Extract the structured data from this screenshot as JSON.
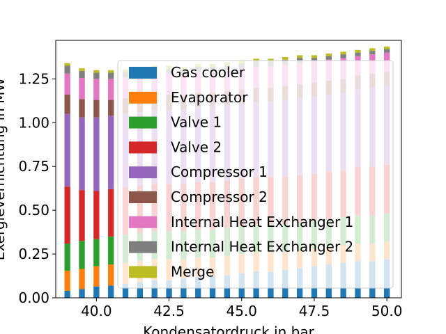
{
  "chart_data": {
    "type": "bar",
    "stacked": true,
    "xlabel": "Kondensatordruck in bar",
    "ylabel": "Exergievernichtung in MW",
    "xlim": [
      38.6,
      50.5
    ],
    "ylim": [
      0.0,
      1.47
    ],
    "xticks": [
      "40.0",
      "42.5",
      "45.0",
      "47.5",
      "50.0"
    ],
    "yticks": [
      "0.00",
      "0.25",
      "0.50",
      "0.75",
      "1.00",
      "1.25"
    ],
    "grid": false,
    "legend_position": "center-right",
    "bar_width": 0.2,
    "x": [
      39.0,
      39.5,
      40.0,
      40.5,
      41.0,
      41.5,
      42.0,
      42.5,
      43.0,
      43.5,
      44.0,
      44.5,
      45.0,
      45.5,
      46.0,
      46.5,
      47.0,
      47.5,
      48.0,
      48.5,
      49.0,
      49.5,
      50.0
    ],
    "series": [
      {
        "name": "Gas cooler",
        "color": "#1f77b4",
        "values": [
          0.04,
          0.05,
          0.065,
          0.07,
          0.08,
          0.09,
          0.1,
          0.1,
          0.11,
          0.12,
          0.12,
          0.13,
          0.14,
          0.15,
          0.15,
          0.16,
          0.17,
          0.18,
          0.19,
          0.2,
          0.21,
          0.21,
          0.22
        ]
      },
      {
        "name": "Evaporator",
        "color": "#ff7f0e",
        "values": [
          0.115,
          0.115,
          0.115,
          0.12,
          0.12,
          0.12,
          0.12,
          0.12,
          0.11,
          0.11,
          0.11,
          0.11,
          0.11,
          0.11,
          0.11,
          0.1,
          0.1,
          0.1,
          0.1,
          0.1,
          0.1,
          0.1,
          0.1
        ]
      },
      {
        "name": "Valve 1",
        "color": "#2ca02c",
        "values": [
          0.155,
          0.16,
          0.155,
          0.16,
          0.16,
          0.16,
          0.16,
          0.16,
          0.16,
          0.16,
          0.16,
          0.16,
          0.16,
          0.16,
          0.16,
          0.16,
          0.16,
          0.16,
          0.16,
          0.16,
          0.16,
          0.16,
          0.16
        ]
      },
      {
        "name": "Valve 2",
        "color": "#d62728",
        "values": [
          0.325,
          0.29,
          0.275,
          0.27,
          0.27,
          0.27,
          0.27,
          0.27,
          0.27,
          0.27,
          0.27,
          0.27,
          0.27,
          0.27,
          0.27,
          0.27,
          0.27,
          0.27,
          0.27,
          0.27,
          0.28,
          0.28,
          0.28
        ]
      },
      {
        "name": "Compressor 1",
        "color": "#9467bd",
        "values": [
          0.415,
          0.415,
          0.42,
          0.42,
          0.42,
          0.42,
          0.42,
          0.42,
          0.42,
          0.43,
          0.43,
          0.43,
          0.43,
          0.43,
          0.43,
          0.44,
          0.44,
          0.44,
          0.44,
          0.44,
          0.44,
          0.45,
          0.45
        ]
      },
      {
        "name": "Compressor 2",
        "color": "#8c564b",
        "values": [
          0.11,
          0.105,
          0.1,
          0.09,
          0.09,
          0.09,
          0.09,
          0.09,
          0.08,
          0.08,
          0.08,
          0.08,
          0.08,
          0.08,
          0.08,
          0.08,
          0.08,
          0.08,
          0.08,
          0.08,
          0.08,
          0.08,
          0.08
        ]
      },
      {
        "name": "Internal Heat Exchanger 1",
        "color": "#e377c2",
        "values": [
          0.12,
          0.12,
          0.12,
          0.12,
          0.12,
          0.12,
          0.12,
          0.12,
          0.12,
          0.12,
          0.12,
          0.12,
          0.12,
          0.12,
          0.12,
          0.12,
          0.12,
          0.12,
          0.12,
          0.12,
          0.11,
          0.11,
          0.11
        ]
      },
      {
        "name": "Internal Heat Exchanger 2",
        "color": "#7f7f7f",
        "values": [
          0.045,
          0.04,
          0.035,
          0.035,
          0.03,
          0.03,
          0.03,
          0.03,
          0.03,
          0.03,
          0.03,
          0.03,
          0.03,
          0.03,
          0.03,
          0.03,
          0.03,
          0.02,
          0.02,
          0.02,
          0.02,
          0.02,
          0.02
        ]
      },
      {
        "name": "Merge",
        "color": "#bcbd22",
        "values": [
          0.015,
          0.015,
          0.015,
          0.015,
          0.015,
          0.015,
          0.015,
          0.015,
          0.015,
          0.015,
          0.015,
          0.015,
          0.015,
          0.015,
          0.015,
          0.015,
          0.015,
          0.015,
          0.015,
          0.015,
          0.015,
          0.015,
          0.015
        ]
      }
    ]
  }
}
